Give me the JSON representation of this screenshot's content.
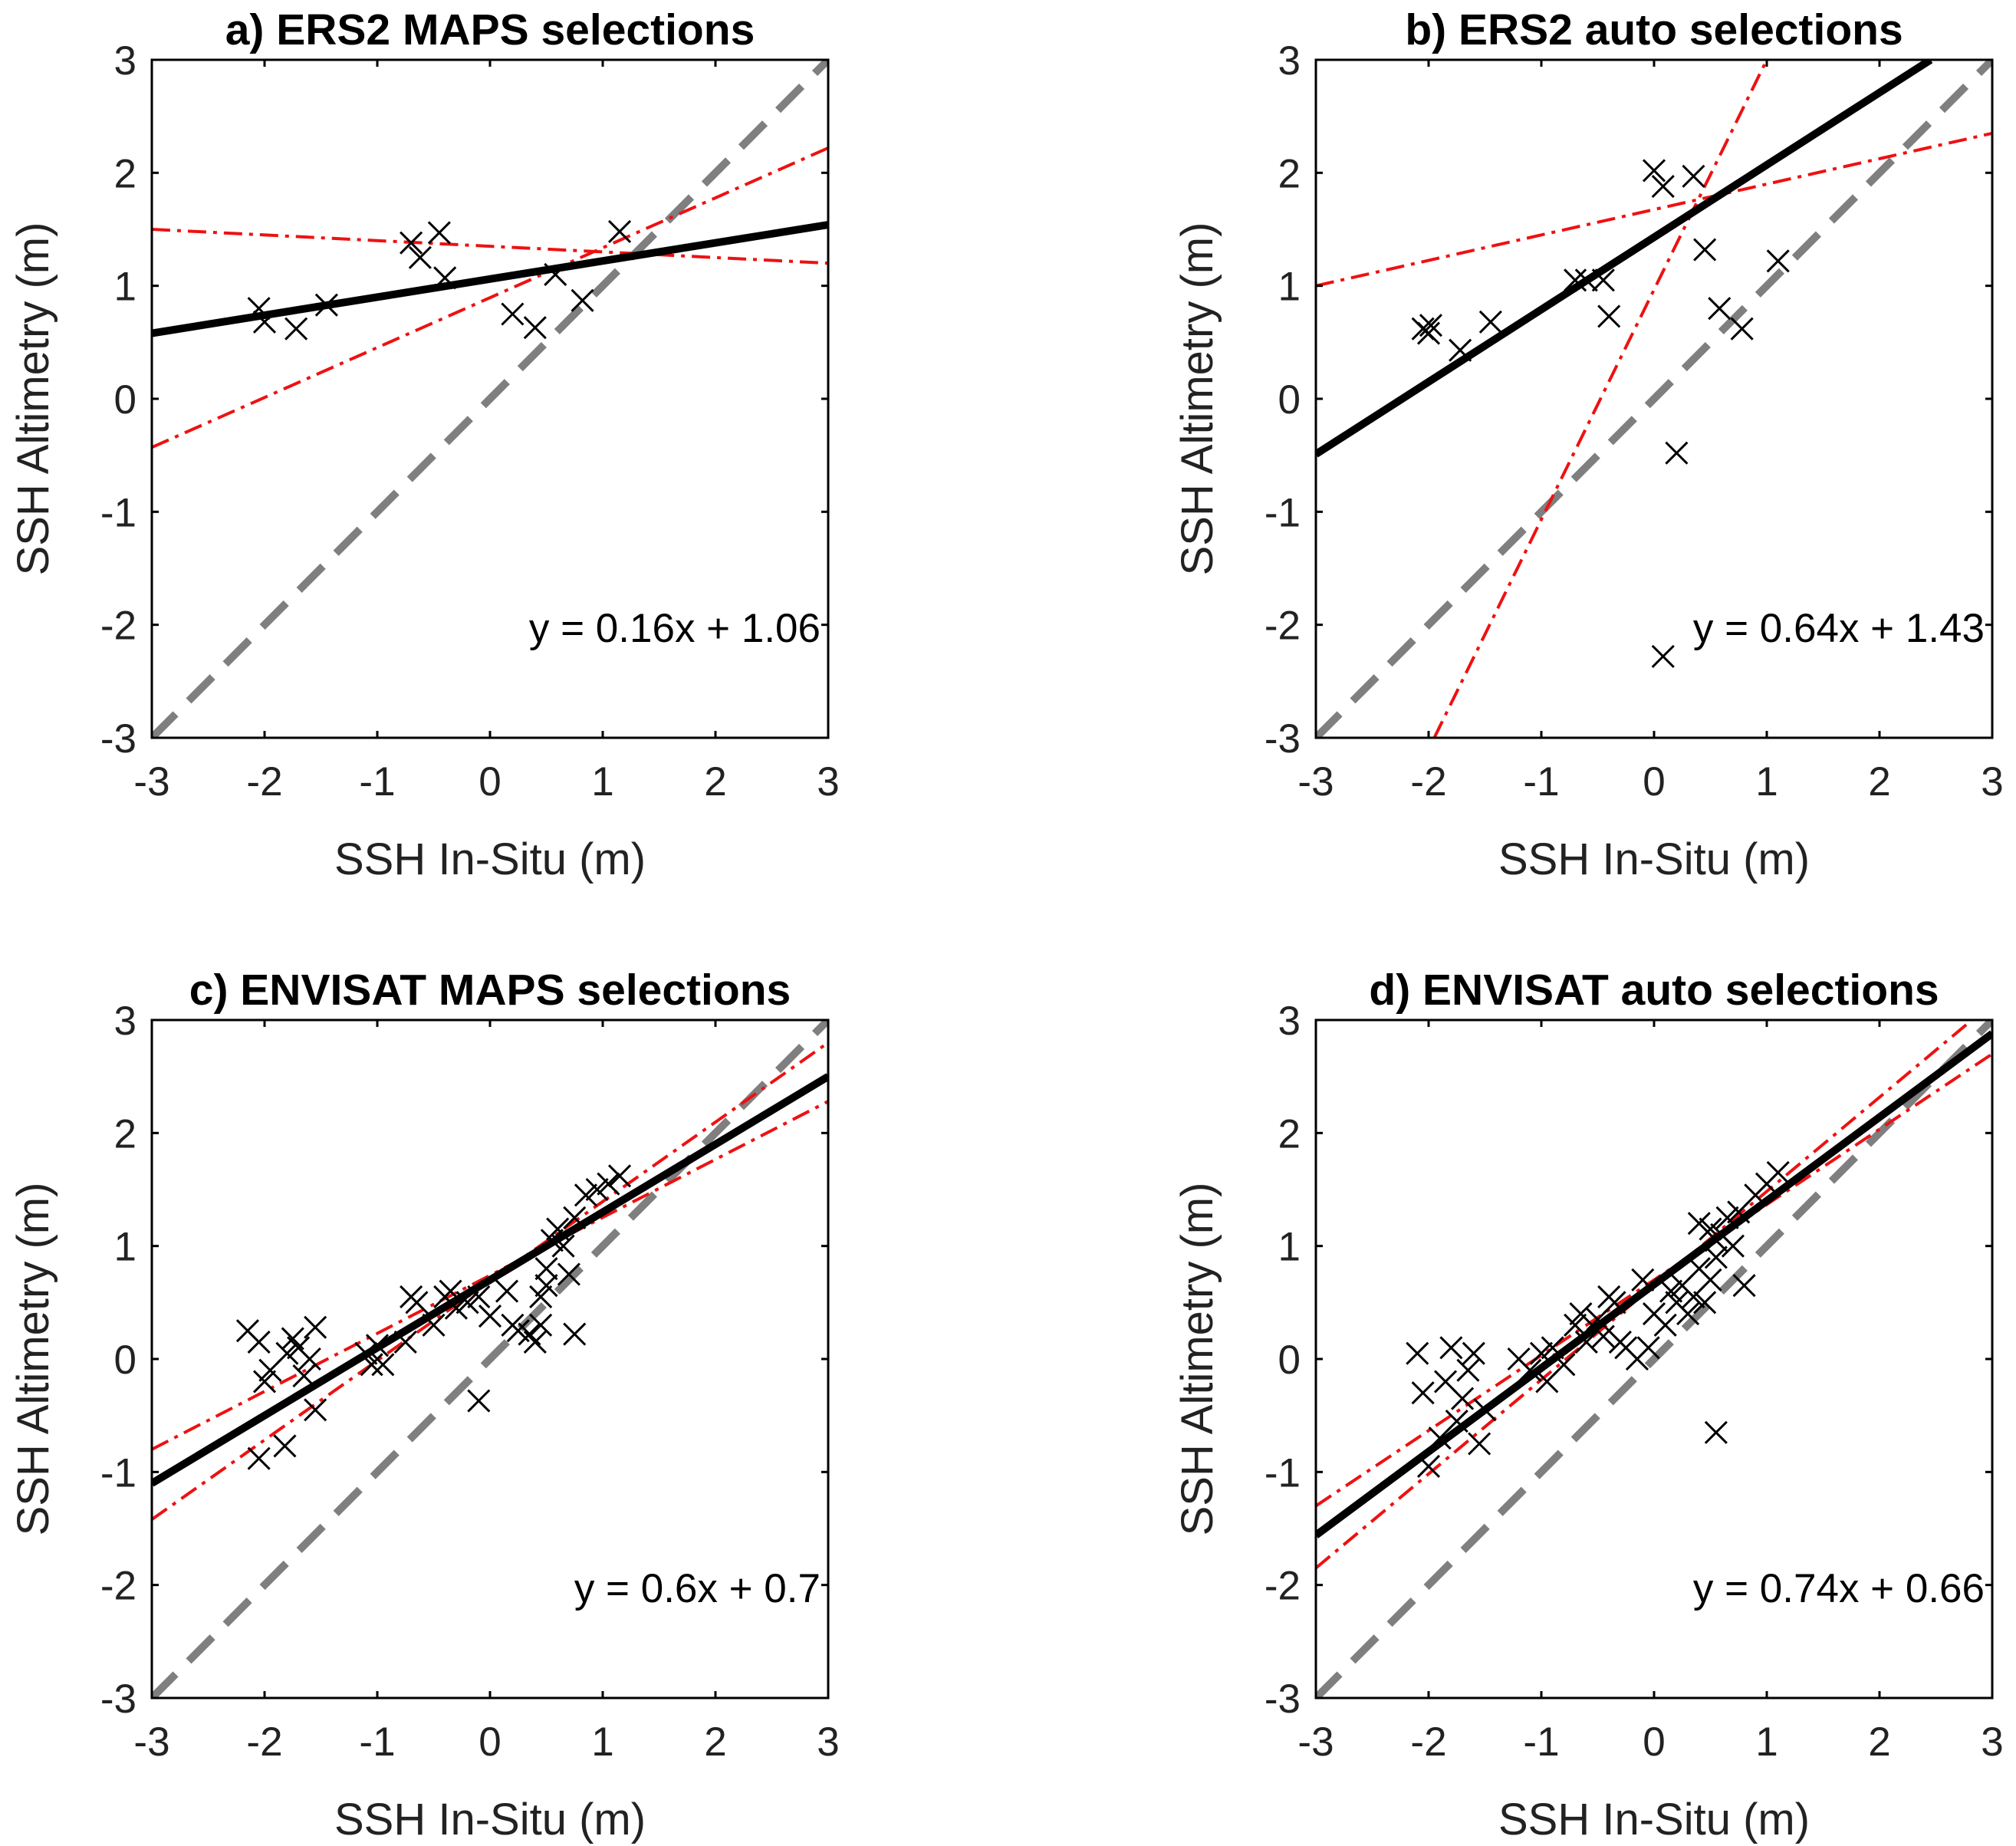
{
  "chart_data": [
    {
      "type": "scatter",
      "title": "a) ERS2 MAPS selections",
      "xlabel": "SSH In-Situ (m)",
      "ylabel": "SSH Altimetry (m)",
      "xlim": [
        -3,
        3
      ],
      "ylim": [
        -3,
        3
      ],
      "xticks": [
        "-3",
        "-2",
        "-1",
        "0",
        "1",
        "2",
        "3"
      ],
      "yticks": [
        "3",
        "2",
        "1",
        "0",
        "-1",
        "-2",
        "-3"
      ],
      "equation": "y = 0.16x + 1.06",
      "fit": {
        "slope": 0.16,
        "intercept": 1.06
      },
      "ci_lines": [
        [
          [
            -3,
            1.5
          ],
          [
            3,
            1.2
          ]
        ],
        [
          [
            -3,
            -0.43
          ],
          [
            3,
            2.22
          ]
        ]
      ],
      "points": [
        [
          -2.05,
          0.8
        ],
        [
          -2.0,
          0.68
        ],
        [
          -1.72,
          0.62
        ],
        [
          -1.45,
          0.83
        ],
        [
          -0.7,
          1.38
        ],
        [
          -0.62,
          1.25
        ],
        [
          -0.45,
          1.47
        ],
        [
          -0.4,
          1.07
        ],
        [
          0.2,
          0.75
        ],
        [
          0.4,
          0.63
        ],
        [
          0.58,
          1.1
        ],
        [
          0.82,
          0.87
        ],
        [
          1.15,
          1.48
        ]
      ]
    },
    {
      "type": "scatter",
      "title": "b) ERS2 auto selections",
      "xlabel": "SSH In-Situ (m)",
      "ylabel": "SSH Altimetry (m)",
      "xlim": [
        -3,
        3
      ],
      "ylim": [
        -3,
        3
      ],
      "xticks": [
        "-3",
        "-2",
        "-1",
        "0",
        "1",
        "2",
        "3"
      ],
      "yticks": [
        "3",
        "2",
        "1",
        "0",
        "-1",
        "-2",
        "-3"
      ],
      "equation": "y = 0.64x + 1.43",
      "fit": {
        "slope": 0.64,
        "intercept": 1.43
      },
      "ci_lines": [
        [
          [
            -3,
            1.0
          ],
          [
            3,
            2.35
          ]
        ],
        [
          [
            -1.95,
            -3.0
          ],
          [
            1.0,
            3.0
          ]
        ]
      ],
      "points": [
        [
          -2.05,
          0.62
        ],
        [
          -2.0,
          0.58
        ],
        [
          -1.98,
          0.65
        ],
        [
          -1.72,
          0.43
        ],
        [
          -1.45,
          0.68
        ],
        [
          -0.7,
          1.05
        ],
        [
          -0.6,
          1.05
        ],
        [
          -0.45,
          1.05
        ],
        [
          -0.4,
          0.73
        ],
        [
          0.0,
          2.02
        ],
        [
          0.08,
          1.88
        ],
        [
          0.35,
          1.97
        ],
        [
          0.45,
          1.32
        ],
        [
          0.58,
          0.8
        ],
        [
          0.78,
          0.62
        ],
        [
          1.1,
          1.22
        ],
        [
          0.2,
          -0.48
        ],
        [
          0.08,
          -2.28
        ]
      ]
    },
    {
      "type": "scatter",
      "title": "c) ENVISAT MAPS selections",
      "xlabel": "SSH In-Situ (m)",
      "ylabel": "SSH Altimetry (m)",
      "xlim": [
        -3,
        3
      ],
      "ylim": [
        -3,
        3
      ],
      "xticks": [
        "-3",
        "-2",
        "-1",
        "0",
        "1",
        "2",
        "3"
      ],
      "yticks": [
        "3",
        "2",
        "1",
        "0",
        "-1",
        "-2",
        "-3"
      ],
      "equation": "y = 0.6x + 0.7",
      "fit": {
        "slope": 0.6,
        "intercept": 0.7
      },
      "ci_lines": [
        [
          [
            -3,
            -0.8
          ],
          [
            3,
            2.28
          ]
        ],
        [
          [
            -3,
            -1.42
          ],
          [
            3,
            2.8
          ]
        ]
      ],
      "points": [
        [
          -2.15,
          0.25
        ],
        [
          -2.05,
          0.15
        ],
        [
          -2.0,
          -0.2
        ],
        [
          -1.95,
          -0.1
        ],
        [
          -2.05,
          -0.88
        ],
        [
          -1.82,
          -0.77
        ],
        [
          -1.8,
          0.05
        ],
        [
          -1.75,
          0.18
        ],
        [
          -1.7,
          0.1
        ],
        [
          -1.65,
          -0.15
        ],
        [
          -1.6,
          0.0
        ],
        [
          -1.55,
          0.28
        ],
        [
          -1.55,
          -0.45
        ],
        [
          -1.1,
          0.05
        ],
        [
          -1.05,
          -0.05
        ],
        [
          -1.0,
          0.12
        ],
        [
          -0.95,
          -0.05
        ],
        [
          -0.75,
          0.15
        ],
        [
          -0.7,
          0.55
        ],
        [
          -0.65,
          0.5
        ],
        [
          -0.5,
          0.3
        ],
        [
          -0.4,
          0.55
        ],
        [
          -0.35,
          0.6
        ],
        [
          -0.3,
          0.45
        ],
        [
          -0.2,
          0.5
        ],
        [
          -0.1,
          0.55
        ],
        [
          0.0,
          0.38
        ],
        [
          0.15,
          0.6
        ],
        [
          0.2,
          0.3
        ],
        [
          0.25,
          0.25
        ],
        [
          0.35,
          0.22
        ],
        [
          0.4,
          0.15
        ],
        [
          0.45,
          0.3
        ],
        [
          0.5,
          0.8
        ],
        [
          0.55,
          1.05
        ],
        [
          0.6,
          1.15
        ],
        [
          0.65,
          1.0
        ],
        [
          0.7,
          0.75
        ],
        [
          0.75,
          1.25
        ],
        [
          0.75,
          0.22
        ],
        [
          0.85,
          1.45
        ],
        [
          0.95,
          1.5
        ],
        [
          1.05,
          1.55
        ],
        [
          1.15,
          1.62
        ],
        [
          0.45,
          0.55
        ],
        [
          0.5,
          0.65
        ],
        [
          -0.1,
          -0.37
        ]
      ]
    },
    {
      "type": "scatter",
      "title": "d) ENVISAT auto selections",
      "xlabel": "SSH In-Situ (m)",
      "ylabel": "SSH Altimetry (m)",
      "xlim": [
        -3,
        3
      ],
      "ylim": [
        -3,
        3
      ],
      "xticks": [
        "-3",
        "-2",
        "-1",
        "0",
        "1",
        "2",
        "3"
      ],
      "yticks": [
        "3",
        "2",
        "1",
        "0",
        "-1",
        "-2",
        "-3"
      ],
      "equation": "y = 0.74x + 0.66",
      "fit": {
        "slope": 0.74,
        "intercept": 0.66
      },
      "ci_lines": [
        [
          [
            -3,
            -1.3
          ],
          [
            3,
            2.7
          ]
        ],
        [
          [
            -3,
            -1.85
          ],
          [
            3,
            3.15
          ]
        ]
      ],
      "points": [
        [
          -2.1,
          0.05
        ],
        [
          -2.05,
          -0.3
        ],
        [
          -2.0,
          -0.95
        ],
        [
          -1.9,
          -0.7
        ],
        [
          -1.85,
          -0.2
        ],
        [
          -1.8,
          0.1
        ],
        [
          -1.75,
          -0.55
        ],
        [
          -1.7,
          -0.35
        ],
        [
          -1.65,
          -0.1
        ],
        [
          -1.6,
          0.05
        ],
        [
          -1.55,
          -0.75
        ],
        [
          -1.5,
          -0.45
        ],
        [
          -1.2,
          0.0
        ],
        [
          -1.1,
          -0.1
        ],
        [
          -1.0,
          0.05
        ],
        [
          -0.95,
          -0.2
        ],
        [
          -0.9,
          0.1
        ],
        [
          -0.8,
          -0.05
        ],
        [
          -0.7,
          0.3
        ],
        [
          -0.65,
          0.4
        ],
        [
          -0.6,
          0.15
        ],
        [
          -0.5,
          0.35
        ],
        [
          -0.45,
          0.2
        ],
        [
          -0.4,
          0.55
        ],
        [
          -0.35,
          0.5
        ],
        [
          -0.3,
          0.15
        ],
        [
          -0.25,
          0.1
        ],
        [
          -0.15,
          0.0
        ],
        [
          -0.1,
          0.7
        ],
        [
          -0.05,
          0.1
        ],
        [
          0.0,
          0.4
        ],
        [
          0.1,
          0.3
        ],
        [
          0.15,
          0.6
        ],
        [
          0.2,
          0.5
        ],
        [
          0.25,
          0.65
        ],
        [
          0.3,
          0.4
        ],
        [
          0.35,
          0.55
        ],
        [
          0.4,
          0.8
        ],
        [
          0.45,
          0.5
        ],
        [
          0.5,
          0.7
        ],
        [
          0.55,
          0.9
        ],
        [
          0.6,
          1.1
        ],
        [
          0.65,
          1.25
        ],
        [
          0.7,
          1.0
        ],
        [
          0.75,
          1.3
        ],
        [
          0.8,
          0.65
        ],
        [
          0.9,
          1.45
        ],
        [
          1.0,
          1.55
        ],
        [
          1.1,
          1.65
        ],
        [
          0.4,
          1.2
        ],
        [
          0.5,
          1.15
        ],
        [
          0.55,
          1.05
        ],
        [
          0.55,
          -0.65
        ]
      ]
    }
  ]
}
